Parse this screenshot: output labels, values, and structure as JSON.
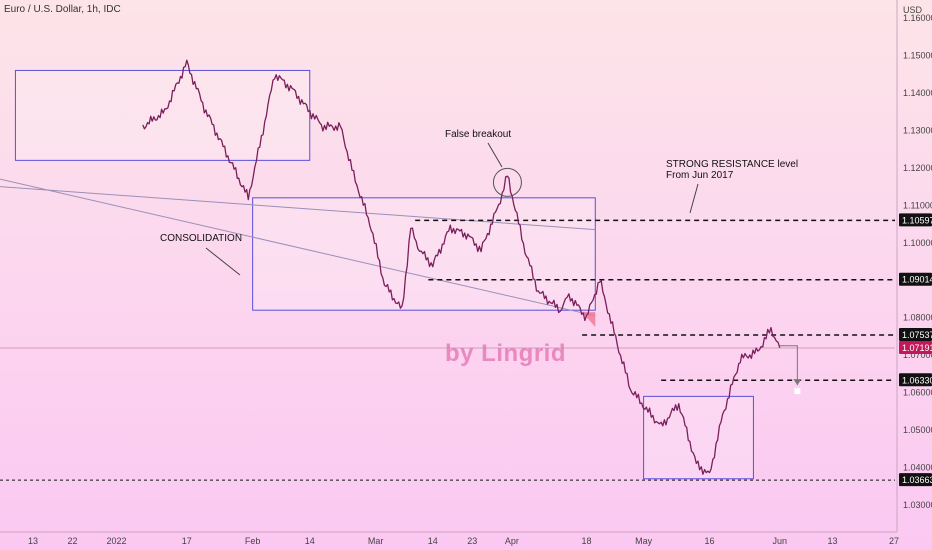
{
  "header": {
    "title": "Euro / U.S. Dollar, 1h, IDC",
    "currency": "USD"
  },
  "watermark": "by Lingrid",
  "colors": {
    "price": "#7a1f5c",
    "box_stroke": "#5b4fd9",
    "box_fill": "#ffffff",
    "last_price_badge": "#c2185b",
    "level_badge": "#111111",
    "resistance_zone": "#f26d8a"
  },
  "annotations": {
    "false_breakout": "False breakout",
    "strong_resistance_line1": "STRONG RESISTANCE level",
    "strong_resistance_line2": "From Jun 2017",
    "consolidation": "CONSOLIDATION"
  },
  "chart_data": {
    "type": "line",
    "title": "Euro / U.S. Dollar, 1h, IDC",
    "series": [
      {
        "name": "",
        "x": [
          "Jan 7",
          "Jan 12",
          "Jan 17",
          "Jan 21",
          "Jan 26",
          "Jan 31",
          "Feb 3",
          "Feb 6",
          "Feb 10",
          "Feb 14",
          "Feb 17",
          "Feb 21",
          "Feb 24",
          "Feb 28",
          "Mar 3",
          "Mar 7",
          "Mar 9",
          "Mar 11",
          "Mar 14",
          "Mar 18",
          "Mar 22",
          "Mar 25",
          "Mar 29",
          "Mar 31",
          "Apr 4",
          "Apr 7",
          "Apr 12",
          "Apr 14",
          "Apr 18",
          "Apr 21",
          "Apr 25",
          "Apr 28",
          "May 2",
          "May 5",
          "May 9",
          "May 13",
          "May 16",
          "May 19",
          "May 23",
          "May 27",
          "May 30",
          "Jun 1"
        ],
        "values": [
          1.131,
          1.135,
          1.148,
          1.136,
          1.124,
          1.112,
          1.128,
          1.145,
          1.141,
          1.135,
          1.131,
          1.131,
          1.118,
          1.104,
          1.089,
          1.082,
          1.104,
          1.098,
          1.094,
          1.104,
          1.102,
          1.098,
          1.11,
          1.118,
          1.098,
          1.087,
          1.082,
          1.086,
          1.08,
          1.09,
          1.073,
          1.061,
          1.055,
          1.051,
          1.057,
          1.041,
          1.038,
          1.054,
          1.069,
          1.071,
          1.077,
          1.072
        ]
      }
    ],
    "levels": [
      1.10597,
      1.09014,
      1.07537,
      1.0633,
      1.03663
    ],
    "last_price": 1.07191,
    "last_price_label": "1.07191",
    "level_labels": [
      "1.10597",
      "1.09014",
      "1.07537",
      "1.06330",
      "1.03663"
    ],
    "y_ticks": [
      "1.16000",
      "1.15000",
      "1.14000",
      "1.13000",
      "1.12000",
      "1.11000",
      "1.10000",
      "1.09000",
      "1.08000",
      "1.07000",
      "1.06000",
      "1.05000",
      "1.04000",
      "1.03000"
    ],
    "y_tick_values": [
      1.16,
      1.15,
      1.14,
      1.13,
      1.12,
      1.11,
      1.1,
      1.09,
      1.08,
      1.07,
      1.06,
      1.05,
      1.04,
      1.03
    ],
    "x_ticks": [
      "13",
      "22",
      "2022",
      "17",
      "Feb",
      "14",
      "Mar",
      "14",
      "23",
      "Apr",
      "18",
      "May",
      "16",
      "Jun",
      "13",
      "27"
    ],
    "x_tick_dates": [
      "Dec 13",
      "Dec 22",
      "Jan 1",
      "Jan 17",
      "Feb 1",
      "Feb 14",
      "Mar 1",
      "Mar 14",
      "Mar 23",
      "Apr 1",
      "Apr 18",
      "May 1",
      "May 16",
      "Jun 1",
      "Jun 13",
      "Jun 27"
    ],
    "ylim": [
      1.024,
      1.161
    ],
    "xlim": [
      "Dec 9",
      "Jun 27"
    ],
    "zones": [
      {
        "from": "Dec 9",
        "to": "Feb 14",
        "low": 1.122,
        "high": 1.146
      },
      {
        "from": "Feb 1",
        "to": "Apr 20",
        "low": 1.082,
        "high": 1.112
      },
      {
        "from": "May 1",
        "to": "May 26",
        "low": 1.037,
        "high": 1.059
      }
    ],
    "trendlines": [
      {
        "from_date": "Dec 9",
        "from_val": 1.115,
        "to_date": "Apr 20",
        "to_val": 1.1035
      },
      {
        "from_date": "Dec 9",
        "from_val": 1.117,
        "to_date": "Apr 20",
        "to_val": 1.0805
      }
    ],
    "level_segments": [
      {
        "value": 1.10597,
        "from": "Mar 10"
      },
      {
        "value": 1.09014,
        "from": "Mar 13"
      },
      {
        "value": 1.07537,
        "from": "Apr 17"
      },
      {
        "value": 1.0633,
        "from": "May 5"
      },
      {
        "value": 1.03663,
        "from": "Dec 9"
      }
    ],
    "resistance_zone": {
      "from": "Apr 17",
      "to": "Apr 20",
      "top_left": 1.0815,
      "top_right": 1.0815,
      "bottom_right": 1.0775
    },
    "false_breakout_point": {
      "date": "Mar 31",
      "value": 1.118
    },
    "projection": [
      {
        "date": "Jun 1",
        "value": 1.0725
      },
      {
        "date": "Jun 5",
        "value": 1.0725
      },
      {
        "date": "Jun 5",
        "value": 1.062
      }
    ],
    "grid": false
  }
}
